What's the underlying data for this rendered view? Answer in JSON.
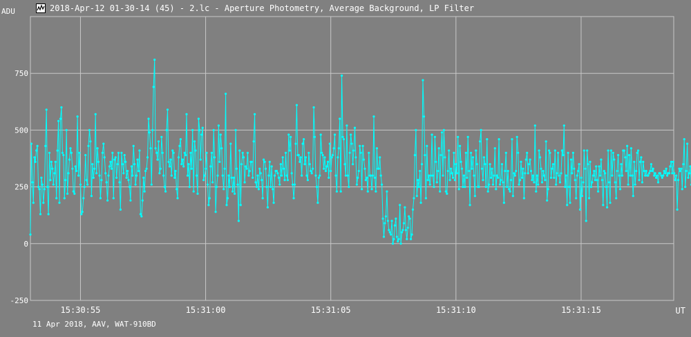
{
  "window": {
    "title": "2018-Apr-12 01-30-14 (45) - 2.lc - Aperture Photometry, Average Background, LP Filter",
    "icon": "app-chart-icon"
  },
  "footer_text": "11 Apr 2018, AAV, WAT-910BD",
  "colors": {
    "background": "#808080",
    "grid": "#c8c8c8",
    "series": "#00ffff",
    "text": "#ffffff"
  },
  "chart_data": {
    "type": "line",
    "title": "2018-Apr-12 01-30-14 (45) - 2.lc - Aperture Photometry, Average Background, LP Filter",
    "ylabel": "ADU",
    "xlabel": "UT",
    "ylim": [
      -250,
      1000
    ],
    "yticks": [
      -250,
      0,
      250,
      500,
      750
    ],
    "xlim": [
      0,
      25.7
    ],
    "xticks": [
      {
        "value": 2,
        "label": "15:30:55"
      },
      {
        "value": 7,
        "label": "15:31:00"
      },
      {
        "value": 12,
        "label": "15:31:05"
      },
      {
        "value": 17,
        "label": "15:31:10"
      },
      {
        "value": 22,
        "label": "15:31:15"
      }
    ],
    "grid": true,
    "series": [
      {
        "markers": true,
        "x_start": 0,
        "x_step": 0.04,
        "values": [
          40,
          440,
          270,
          180,
          380,
          360,
          410,
          430,
          250,
          240,
          130,
          290,
          260,
          180,
          240,
          430,
          590,
          250,
          130,
          400,
          280,
          360,
          330,
          260,
          310,
          360,
          200,
          410,
          540,
          180,
          550,
          600,
          400,
          390,
          200,
          280,
          500,
          220,
          310,
          370,
          420,
          400,
          330,
          230,
          220,
          340,
          320,
          560,
          300,
          400,
          260,
          130,
          140,
          200,
          250,
          390,
          280,
          260,
          430,
          500,
          450,
          210,
          350,
          290,
          330,
          570,
          310,
          420,
          360,
          300,
          200,
          280,
          400,
          440,
          380,
          310,
          270,
          190,
          300,
          340,
          360,
          330,
          400,
          200,
          370,
          380,
          290,
          350,
          400,
          270,
          150,
          400,
          350,
          310,
          390,
          360,
          290,
          320,
          280,
          250,
          190,
          340,
          300,
          430,
          350,
          260,
          300,
          370,
          320,
          410,
          130,
          120,
          190,
          290,
          230,
          320,
          330,
          380,
          550,
          490,
          420,
          260,
          500,
          690,
          810,
          420,
          400,
          370,
          450,
          310,
          330,
          470,
          400,
          300,
          250,
          230,
          500,
          590,
          360,
          340,
          370,
          300,
          410,
          400,
          290,
          320,
          240,
          200,
          380,
          430,
          460,
          350,
          370,
          340,
          400,
          390,
          570,
          300,
          350,
          250,
          400,
          330,
          500,
          230,
          450,
          410,
          300,
          220,
          550,
          500,
          370,
          480,
          510,
          280,
          300,
          330,
          400,
          260,
          170,
          200,
          340,
          400,
          270,
          500,
          380,
          140,
          250,
          300,
          520,
          360,
          480,
          420,
          300,
          240,
          330,
          660,
          170,
          200,
          300,
          250,
          440,
          290,
          230,
          290,
          220,
          500,
          330,
          260,
          100,
          410,
          170,
          350,
          400,
          380,
          270,
          340,
          330,
          400,
          300,
          320,
          360,
          360,
          290,
          450,
          570,
          270,
          250,
          300,
          240,
          330,
          310,
          280,
          200,
          370,
          360,
          330,
          250,
          160,
          300,
          360,
          250,
          340,
          240,
          180,
          300,
          320,
          320,
          310,
          290,
          260,
          350,
          300,
          380,
          330,
          280,
          400,
          300,
          280,
          480,
          410,
          470,
          310,
          260,
          200,
          260,
          440,
          610,
          390,
          390,
          360,
          380,
          300,
          440,
          460,
          350,
          380,
          300,
          280,
          400,
          350,
          320,
          310,
          330,
          600,
          470,
          300,
          250,
          180,
          290,
          300,
          480,
          400,
          390,
          330,
          380,
          320,
          340,
          360,
          290,
          440,
          320,
          380,
          390,
          420,
          480,
          300,
          230,
          380,
          420,
          550,
          230,
          740,
          470,
          460,
          350,
          300,
          520,
          300,
          250,
          400,
          480,
          440,
          350,
          410,
          510,
          380,
          260,
          290,
          320,
          430,
          400,
          240,
          430,
          370,
          330,
          280,
          290,
          230,
          400,
          300,
          300,
          240,
          300,
          560,
          290,
          230,
          420,
          330,
          330,
          380,
          300,
          260,
          110,
          30,
          90,
          120,
          230,
          100,
          60,
          50,
          40,
          100,
          0,
          20,
          80,
          110,
          30,
          10,
          20,
          170,
          0,
          50,
          60,
          90,
          160,
          60,
          20,
          70,
          120,
          110,
          20,
          40,
          150,
          200,
          390,
          500,
          210,
          280,
          250,
          320,
          180,
          350,
          720,
          560,
          390,
          200,
          430,
          280,
          300,
          260,
          300,
          480,
          300,
          250,
          470,
          360,
          270,
          320,
          420,
          230,
          390,
          490,
          300,
          500,
          380,
          230,
          220,
          320,
          410,
          280,
          330,
          310,
          290,
          400,
          280,
          350,
          310,
          470,
          240,
          430,
          360,
          330,
          250,
          300,
          250,
          400,
          290,
          470,
          320,
          170,
          400,
          330,
          380,
          300,
          210,
          410,
          350,
          250,
          250,
          450,
          500,
          330,
          280,
          380,
          350,
          250,
          460,
          230,
          260,
          350,
          290,
          330,
          260,
          300,
          420,
          240,
          300,
          290,
          460,
          260,
          280,
          350,
          270,
          180,
          320,
          400,
          250,
          320,
          240,
          230,
          280,
          460,
          210,
          310,
          300,
          320,
          470,
          400,
          260,
          280,
          360,
          290,
          330,
          200,
          310,
          370,
          400,
          310,
          350,
          370,
          320,
          280,
          300,
          270,
          520,
          230,
          300,
          260,
          410,
          380,
          330,
          270,
          320,
          300,
          280,
          450,
          190,
          240,
          410,
          400,
          290,
          330,
          350,
          290,
          410,
          260,
          310,
          400,
          300,
          270,
          310,
          410,
          390,
          520,
          250,
          300,
          170,
          400,
          250,
          180,
          370,
          310,
          400,
          330,
          280,
          200,
          300,
          320,
          350,
          150,
          290,
          210,
          270,
          410,
          330,
          100,
          410,
          350,
          200,
          360,
          250,
          270,
          300,
          320,
          280,
          340,
          280,
          230,
          340,
          300,
          370,
          280,
          170,
          320,
          310,
          250,
          160,
          410,
          270,
          180,
          410,
          300,
          400,
          370,
          270,
          200,
          320,
          390,
          300,
          240,
          350,
          300,
          410,
          410,
          380,
          320,
          430,
          260,
          390,
          300,
          420,
          300,
          210,
          360,
          260,
          320,
          400,
          410,
          280,
          360,
          380,
          270,
          360,
          320,
          300,
          320,
          300,
          300,
          310,
          320,
          350,
          320,
          330,
          300,
          310,
          290,
          300,
          270,
          310,
          310,
          300,
          290,
          300,
          320,
          310,
          330,
          300,
          310,
          310,
          340,
          360,
          310,
          360,
          310,
          280,
          300,
          150,
          280,
          330,
          320,
          330,
          240,
          350,
          460,
          250,
          320,
          440,
          290,
          310,
          340,
          260,
          330,
          290,
          340,
          420,
          350,
          310,
          350,
          340,
          280,
          300,
          540,
          290,
          300,
          360,
          250,
          330,
          260,
          320,
          330,
          350,
          310,
          330,
          290,
          350,
          400,
          270,
          310,
          300,
          260,
          300,
          320,
          310,
          330,
          310,
          320,
          280,
          300,
          350,
          440,
          140
        ]
      }
    ]
  }
}
